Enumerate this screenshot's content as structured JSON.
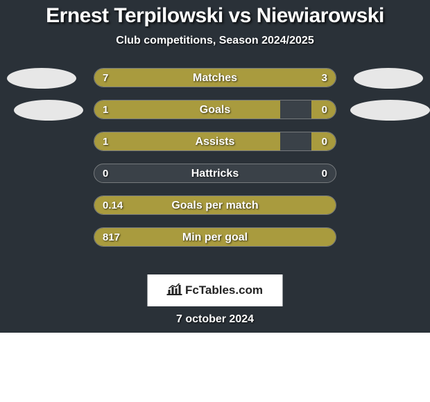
{
  "title": "Ernest Terpilowski vs Niewiarowski",
  "subtitle": "Club competitions, Season 2024/2025",
  "date": "7 october 2024",
  "logo_text": "FcTables.com",
  "colors": {
    "background": "#2a3138",
    "bar_fill": "#a99b3e",
    "bar_track": "#3a4148",
    "bar_border": "#767a7d",
    "text": "#ffffff",
    "silhouette": "#e7e7e7",
    "logo_bg": "#ffffff",
    "logo_text": "#232323"
  },
  "stats": [
    {
      "label": "Matches",
      "left_val": "7",
      "right_val": "3",
      "left_pct": 70,
      "right_pct": 30
    },
    {
      "label": "Goals",
      "left_val": "1",
      "right_val": "0",
      "left_pct": 77,
      "right_pct": 10
    },
    {
      "label": "Assists",
      "left_val": "1",
      "right_val": "0",
      "left_pct": 77,
      "right_pct": 10
    },
    {
      "label": "Hattricks",
      "left_val": "0",
      "right_val": "0",
      "left_pct": 0,
      "right_pct": 0
    },
    {
      "label": "Goals per match",
      "left_val": "0.14",
      "right_val": "",
      "left_pct": 100,
      "right_pct": 0
    },
    {
      "label": "Min per goal",
      "left_val": "817",
      "right_val": "",
      "left_pct": 100,
      "right_pct": 0
    }
  ]
}
